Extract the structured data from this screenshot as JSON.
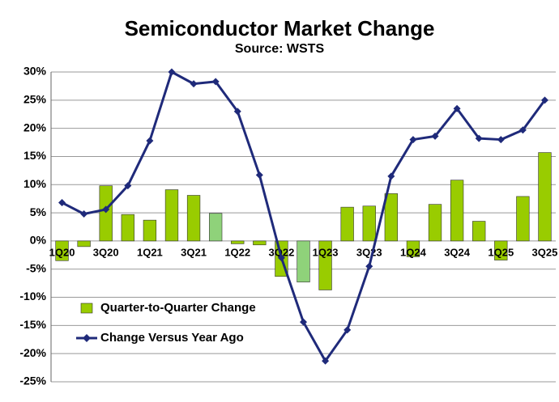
{
  "chart_data": {
    "type": "bar-line",
    "title": "Semiconductor Market Change",
    "subtitle": "Source: WSTS",
    "categories": [
      "1Q20",
      null,
      "3Q20",
      null,
      "1Q21",
      null,
      "3Q21",
      null,
      "1Q22",
      null,
      "3Q22",
      null,
      "1Q23",
      null,
      "3Q23",
      null,
      "1Q24",
      null,
      "3Q24",
      null,
      "1Q25",
      null,
      "3Q25"
    ],
    "series": [
      {
        "name": "Quarter-to-Quarter Change",
        "type": "bar",
        "color": "#99cc00",
        "colors": [
          "#99cc00",
          "#99cc00",
          "#99cc00",
          "#99cc00",
          "#99cc00",
          "#99cc00",
          "#99cc00",
          "#8fd27a",
          "#99cc00",
          "#99cc00",
          "#99cc00",
          "#8fd27a",
          "#99cc00",
          "#99cc00",
          "#99cc00",
          "#99cc00",
          "#99cc00",
          "#99cc00",
          "#99cc00",
          "#99cc00",
          "#99cc00",
          "#99cc00",
          "#99cc00"
        ],
        "values": [
          -3.5,
          -1.0,
          9.8,
          4.7,
          3.7,
          9.1,
          8.1,
          4.9,
          -0.5,
          -0.7,
          -6.3,
          -7.3,
          -8.7,
          6.0,
          6.2,
          8.4,
          -2.8,
          6.5,
          10.8,
          3.5,
          -3.4,
          7.9,
          15.7
        ]
      },
      {
        "name": "Change Versus Year Ago",
        "type": "line",
        "color": "#1f2a7a",
        "values": [
          6.8,
          4.8,
          5.6,
          9.8,
          17.8,
          30.0,
          27.9,
          28.3,
          23.0,
          11.7,
          -3.0,
          -14.4,
          -21.3,
          -15.8,
          -4.5,
          11.5,
          18.0,
          18.6,
          23.5,
          18.2,
          18.0,
          19.7,
          25.0
        ]
      }
    ],
    "ylim": [
      -25,
      30
    ],
    "yticks": [
      {
        "value": -25,
        "label": "-25%"
      },
      {
        "value": -20,
        "label": "-20%"
      },
      {
        "value": -15,
        "label": "-15%"
      },
      {
        "value": -10,
        "label": "-10%"
      },
      {
        "value": -5,
        "label": "-5%"
      },
      {
        "value": 0,
        "label": "0%"
      },
      {
        "value": 5,
        "label": "5%"
      },
      {
        "value": 10,
        "label": "10%"
      },
      {
        "value": 15,
        "label": "15%"
      },
      {
        "value": 20,
        "label": "20%"
      },
      {
        "value": 25,
        "label": "25%"
      },
      {
        "value": 30,
        "label": "30%"
      }
    ],
    "grid": true,
    "legend": "lower-left"
  }
}
